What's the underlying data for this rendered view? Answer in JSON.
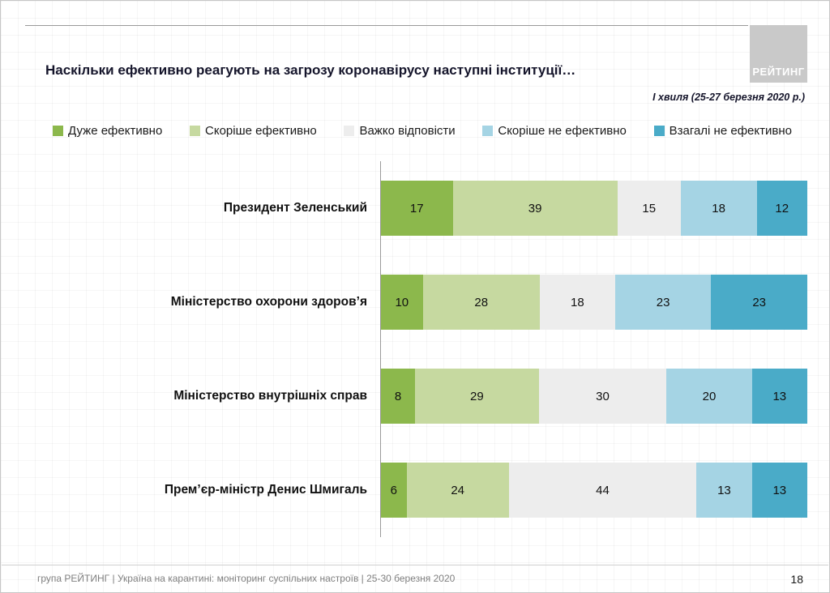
{
  "logo": {
    "text": "РЕЙТИНГ"
  },
  "title": "Наскільки ефективно реагують на загрозу коронавірусу наступні інституції…",
  "subtitle": "І хвиля (25-27 березня 2020 р.)",
  "chart_data": {
    "type": "bar",
    "orientation": "horizontal-stacked",
    "title": "Наскільки ефективно реагують на загрозу коронавірусу наступні інституції…",
    "categories": [
      "Президент Зеленський",
      "Міністерство охорони здоров’я",
      "Міністерство внутрішніх справ",
      "Прем’єр-міністр Денис Шмигаль"
    ],
    "series": [
      {
        "name": "Дуже ефективно",
        "color": "#8cb84c",
        "values": [
          17,
          10,
          8,
          6
        ]
      },
      {
        "name": "Скоріше ефективно",
        "color": "#c6d9a0",
        "values": [
          39,
          28,
          29,
          24
        ]
      },
      {
        "name": "Важко відповісти",
        "color": "#ededed",
        "values": [
          15,
          18,
          30,
          44
        ]
      },
      {
        "name": "Скоріше не ефективно",
        "color": "#a5d4e4",
        "values": [
          18,
          23,
          20,
          13
        ]
      },
      {
        "name": "Взагалі не ефективно",
        "color": "#4aabc8",
        "values": [
          12,
          23,
          13,
          13
        ]
      }
    ],
    "xlim": [
      0,
      100
    ],
    "legend_position": "top",
    "value_labels": true,
    "grid": false
  },
  "footer": {
    "source": "група РЕЙТИНГ  |  Україна на карантині: моніторинг суспільних настроїв  |  25-30 березня 2020",
    "page_number": "18"
  }
}
